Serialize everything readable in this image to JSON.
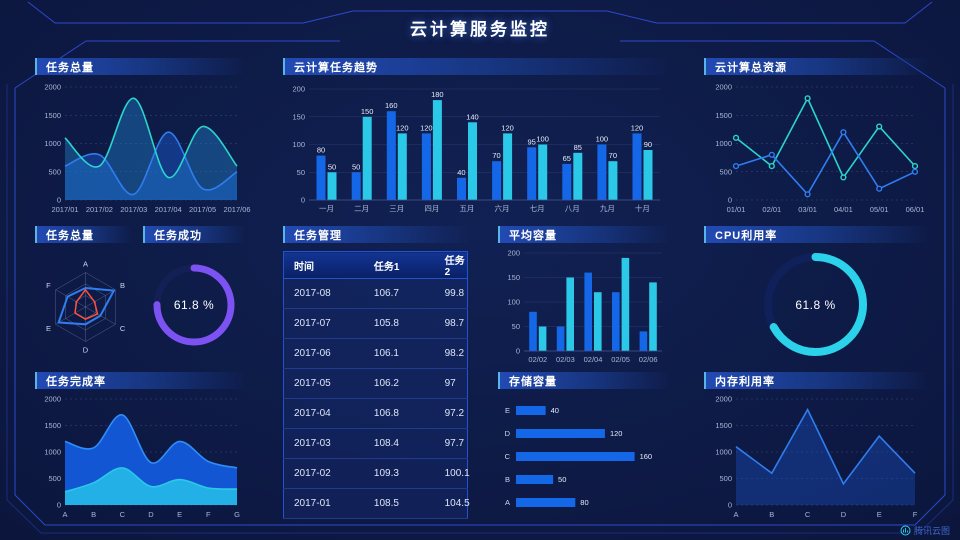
{
  "page": {
    "title": "云计算服务监控",
    "watermark": "腾讯云图"
  },
  "panels": {
    "task_total_area": {
      "title": "任务总量"
    },
    "task_trend": {
      "title": "云计算任务趋势"
    },
    "total_resources": {
      "title": "云计算总资源"
    },
    "task_radar": {
      "title": "任务总量"
    },
    "task_success": {
      "title": "任务成功",
      "value": "61.8 %"
    },
    "task_management": {
      "title": "任务管理"
    },
    "avg_capacity": {
      "title": "平均容量"
    },
    "cpu_usage": {
      "title": "CPU利用率",
      "value": "61.8 %"
    },
    "task_completion": {
      "title": "任务完成率"
    },
    "storage_capacity": {
      "title": "存储容量"
    },
    "memory_usage": {
      "title": "内存利用率"
    }
  },
  "colors": {
    "blue_bar": "#1468e8",
    "cyan_bar": "#2cc8e8",
    "blue_line": "#2f7df0",
    "cyan_line": "#2cd5cc",
    "purple_gauge": "#7d52f2",
    "cyan_gauge": "#2bd2ea",
    "red_radar": "#ff5038",
    "frame_line": "#2d49cc"
  },
  "chart_data": [
    {
      "id": "task_total_area",
      "type": "area",
      "title": "任务总量",
      "x": [
        "2017/01",
        "2017/02",
        "2017/03",
        "2017/04",
        "2017/05",
        "2017/06"
      ],
      "series": [
        {
          "name": "series-blue",
          "color": "#2f7df0",
          "fill": "rgba(25,90,210,0.45)",
          "values": [
            600,
            800,
            100,
            1200,
            200,
            500
          ]
        },
        {
          "name": "series-cyan",
          "color": "#2cd5cc",
          "fill": "rgba(35,140,215,0.38)",
          "values": [
            1100,
            600,
            1800,
            400,
            1300,
            600
          ]
        }
      ],
      "smooth": true,
      "ylim": [
        0,
        2000
      ],
      "yticks": [
        0,
        500,
        1000,
        1500,
        2000
      ],
      "grid": "dashed"
    },
    {
      "id": "task_trend",
      "type": "bar",
      "title": "云计算任务趋势",
      "categories": [
        "一月",
        "二月",
        "三月",
        "四月",
        "五月",
        "六月",
        "七月",
        "八月",
        "九月",
        "十月"
      ],
      "series": [
        {
          "name": "任务1",
          "color": "#1468e8",
          "values": [
            80,
            50,
            160,
            120,
            40,
            70,
            95,
            65,
            100,
            120
          ]
        },
        {
          "name": "任务2",
          "color": "#2cc8e8",
          "values": [
            50,
            150,
            120,
            180,
            140,
            120,
            100,
            85,
            70,
            90
          ]
        }
      ],
      "ylim": [
        0,
        200
      ],
      "yticks": [
        0,
        50,
        100,
        150,
        200
      ],
      "labels": true
    },
    {
      "id": "total_resources",
      "type": "line",
      "title": "云计算总资源",
      "x": [
        "01/01",
        "02/01",
        "03/01",
        "04/01",
        "05/01",
        "06/01"
      ],
      "series": [
        {
          "name": "series-cyan",
          "color": "#2cd5cc",
          "values": [
            1100,
            600,
            1800,
            400,
            1300,
            600
          ]
        },
        {
          "name": "series-blue",
          "color": "#2f7df0",
          "values": [
            600,
            800,
            100,
            1200,
            200,
            500
          ]
        }
      ],
      "markers": true,
      "ylim": [
        0,
        2000
      ],
      "yticks": [
        0,
        500,
        1000,
        1500,
        2000
      ],
      "grid": "dashed"
    },
    {
      "id": "task_radar",
      "type": "radar",
      "title": "任务总量",
      "axes": [
        "A",
        "B",
        "C",
        "D",
        "E",
        "F"
      ],
      "rmax": 1,
      "series": [
        {
          "name": "series-blue",
          "color": "#2f7df0",
          "values": [
            0.55,
            0.95,
            0.5,
            0.5,
            0.9,
            0.6
          ]
        },
        {
          "name": "series-red",
          "color": "#ff5038",
          "values": [
            0.5,
            0.3,
            0.4,
            0.35,
            0.35,
            0.3
          ]
        }
      ]
    },
    {
      "id": "task_success",
      "type": "donut",
      "title": "任务成功",
      "value": 61.8,
      "display": "61.8 %",
      "color": "#7d52f2",
      "track": "#141f56",
      "fraction": 0.75
    },
    {
      "id": "task_table",
      "type": "table",
      "title": "任务管理",
      "columns": [
        "时间",
        "任务1",
        "任务2"
      ],
      "rows": [
        [
          "2017-08",
          "106.7",
          "99.8"
        ],
        [
          "2017-07",
          "105.8",
          "98.7"
        ],
        [
          "2017-06",
          "106.1",
          "98.2"
        ],
        [
          "2017-05",
          "106.2",
          "97"
        ],
        [
          "2017-04",
          "106.8",
          "97.2"
        ],
        [
          "2017-03",
          "108.4",
          "97.7"
        ],
        [
          "2017-02",
          "109.3",
          "100.1"
        ],
        [
          "2017-01",
          "108.5",
          "104.5"
        ]
      ]
    },
    {
      "id": "avg_capacity",
      "type": "bar",
      "title": "平均容量",
      "categories": [
        "02/02",
        "02/03",
        "02/04",
        "02/05",
        "02/06"
      ],
      "series": [
        {
          "name": "series-blue",
          "color": "#1468e8",
          "values": [
            80,
            50,
            160,
            120,
            40
          ]
        },
        {
          "name": "series-cyan",
          "color": "#2cc8e8",
          "values": [
            50,
            150,
            120,
            190,
            140
          ]
        }
      ],
      "ylim": [
        0,
        200
      ],
      "yticks": [
        0,
        50,
        100,
        150,
        200
      ],
      "labels": false
    },
    {
      "id": "cpu_usage",
      "type": "donut",
      "title": "CPU利用率",
      "value": 61.8,
      "display": "61.8 %",
      "color": "#2bd2ea",
      "track": "#10205a",
      "fraction": 0.67
    },
    {
      "id": "task_completion",
      "type": "area",
      "title": "任务完成率",
      "x": [
        "A",
        "B",
        "C",
        "D",
        "E",
        "F",
        "G"
      ],
      "series": [
        {
          "name": "series-blue",
          "color": "#2f8df8",
          "fill": "#1256d4",
          "values": [
            1200,
            1080,
            1700,
            800,
            1200,
            820,
            700
          ]
        },
        {
          "name": "series-cyan",
          "color": "#2cc8e8",
          "fill": "#23b0e6",
          "values": [
            250,
            420,
            700,
            350,
            480,
            320,
            300
          ]
        }
      ],
      "smooth": true,
      "ylim": [
        0,
        2000
      ],
      "yticks": [
        0,
        500,
        1000,
        1500,
        2000
      ],
      "grid": "dashed"
    },
    {
      "id": "storage_capacity",
      "type": "hbar",
      "title": "存储容量",
      "categories": [
        "E",
        "D",
        "C",
        "B",
        "A"
      ],
      "values": [
        40,
        120,
        160,
        50,
        80
      ],
      "color": "#1468e8",
      "xmax": 170
    },
    {
      "id": "memory_usage",
      "type": "linearea",
      "title": "内存利用率",
      "x": [
        "A",
        "B",
        "C",
        "D",
        "E",
        "F"
      ],
      "series": [
        {
          "name": "series-blue",
          "color": "#2f7df0",
          "fill": "rgba(28,85,210,0.35)",
          "values": [
            1100,
            600,
            1800,
            400,
            1300,
            600
          ]
        }
      ],
      "ylim": [
        0,
        2000
      ],
      "yticks": [
        0,
        500,
        1000,
        1500,
        2000
      ],
      "grid": "dashed"
    }
  ]
}
